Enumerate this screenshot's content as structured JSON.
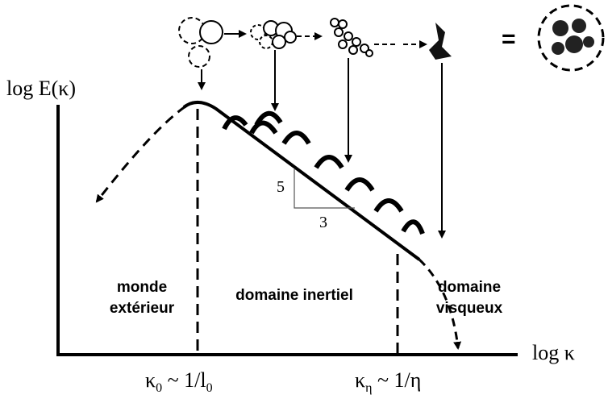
{
  "axes": {
    "y_label": "log E(κ)",
    "x_label": "log κ"
  },
  "regions": [
    {
      "lines": [
        "monde",
        "extérieur"
      ]
    },
    {
      "lines": [
        "domaine inertiel"
      ]
    },
    {
      "lines": [
        "domaine",
        "visqueux"
      ]
    }
  ],
  "slope": {
    "rise": "5",
    "run": "3"
  },
  "scales": {
    "integral": {
      "symbol": "κ",
      "sub": "0",
      "relation": " ~ 1/l",
      "rel_sub": "0"
    },
    "kolmogorov": {
      "symbol": "κ",
      "sub": "η",
      "relation": " ~ 1/η"
    }
  },
  "equals": "="
}
